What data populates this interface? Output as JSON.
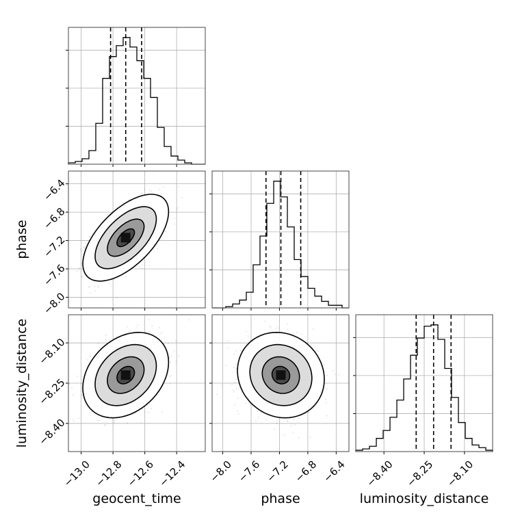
{
  "chart_data": {
    "type": "corner",
    "parameters": [
      "geocent_time",
      "phase",
      "luminosity_distance"
    ],
    "ranges": {
      "geocent_time": [
        -13.08,
        -12.22
      ],
      "phase": [
        -8.15,
        -6.22
      ],
      "luminosity_distance": [
        -8.505,
        -7.995
      ]
    },
    "ticks": {
      "geocent_time": {
        "values": [
          -13.0,
          -12.8,
          -12.6,
          -12.4
        ],
        "labels": [
          "−13.0",
          "−12.8",
          "−12.6",
          "−12.4"
        ]
      },
      "phase": {
        "values": [
          -8.0,
          -7.6,
          -7.2,
          -6.8,
          -6.4
        ],
        "labels": [
          "−8.0",
          "−7.6",
          "−7.2",
          "−6.8",
          "−6.4"
        ]
      },
      "luminosity_distance": {
        "values": [
          -8.4,
          -8.25,
          -8.1
        ],
        "labels": [
          "−8.40",
          "−8.25",
          "−8.10"
        ]
      }
    },
    "quantiles": {
      "geocent_time": [
        -12.815,
        -12.72,
        -12.62
      ],
      "phase": [
        -7.39,
        -7.18,
        -6.9
      ],
      "luminosity_distance": [
        -8.28,
        -8.215,
        -8.15
      ]
    },
    "histograms": {
      "geocent_time": {
        "edges": [
          -13.08,
          -13.037,
          -12.994,
          -12.951,
          -12.908,
          -12.865,
          -12.822,
          -12.779,
          -12.736,
          -12.693,
          -12.65,
          -12.607,
          -12.564,
          -12.521,
          -12.478,
          -12.435,
          -12.392,
          -12.349,
          -12.306,
          -12.263,
          -12.22
        ],
        "counts": [
          0.01,
          0.02,
          0.04,
          0.1,
          0.3,
          0.63,
          0.79,
          0.87,
          0.93,
          0.86,
          0.76,
          0.63,
          0.49,
          0.27,
          0.13,
          0.06,
          0.03,
          0.01,
          0.0,
          0.0
        ]
      },
      "phase": {
        "edges": [
          -8.15,
          -8.0535,
          -7.957,
          -7.8605,
          -7.764,
          -7.6675,
          -7.571,
          -7.4745,
          -7.378,
          -7.2815,
          -7.185,
          -7.0885,
          -6.992,
          -6.8955,
          -6.799,
          -6.7025,
          -6.606,
          -6.5095,
          -6.413,
          -6.3165,
          -6.22
        ],
        "counts": [
          0.0,
          0.0,
          0.01,
          0.03,
          0.06,
          0.12,
          0.33,
          0.55,
          0.8,
          0.97,
          0.85,
          0.62,
          0.37,
          0.24,
          0.15,
          0.09,
          0.05,
          0.02,
          0.02,
          0.0
        ]
      },
      "luminosity_distance": {
        "edges": [
          -8.505,
          -8.4795,
          -8.454,
          -8.4285,
          -8.403,
          -8.3775,
          -8.352,
          -8.3265,
          -8.301,
          -8.2755,
          -8.25,
          -8.2245,
          -8.199,
          -8.1735,
          -8.148,
          -8.1225,
          -8.097,
          -8.0715,
          -8.046,
          -8.0205,
          -7.995
        ],
        "counts": [
          0.01,
          0.02,
          0.04,
          0.1,
          0.16,
          0.26,
          0.39,
          0.55,
          0.73,
          0.86,
          0.95,
          0.96,
          0.85,
          0.63,
          0.41,
          0.22,
          0.1,
          0.05,
          0.03,
          0.01
        ]
      }
    },
    "joint": [
      {
        "x": "geocent_time",
        "y": "phase",
        "mean": [
          -12.72,
          -7.16
        ],
        "sd": [
          0.11,
          0.25
        ],
        "rho": 0.6
      },
      {
        "x": "geocent_time",
        "y": "luminosity_distance",
        "mean": [
          -12.72,
          -8.22
        ],
        "sd": [
          0.11,
          0.065
        ],
        "rho": 0.3
      },
      {
        "x": "phase",
        "y": "luminosity_distance",
        "mean": [
          -7.18,
          -8.22
        ],
        "sd": [
          0.25,
          0.065
        ],
        "rho": -0.1
      }
    ],
    "grid": true
  }
}
